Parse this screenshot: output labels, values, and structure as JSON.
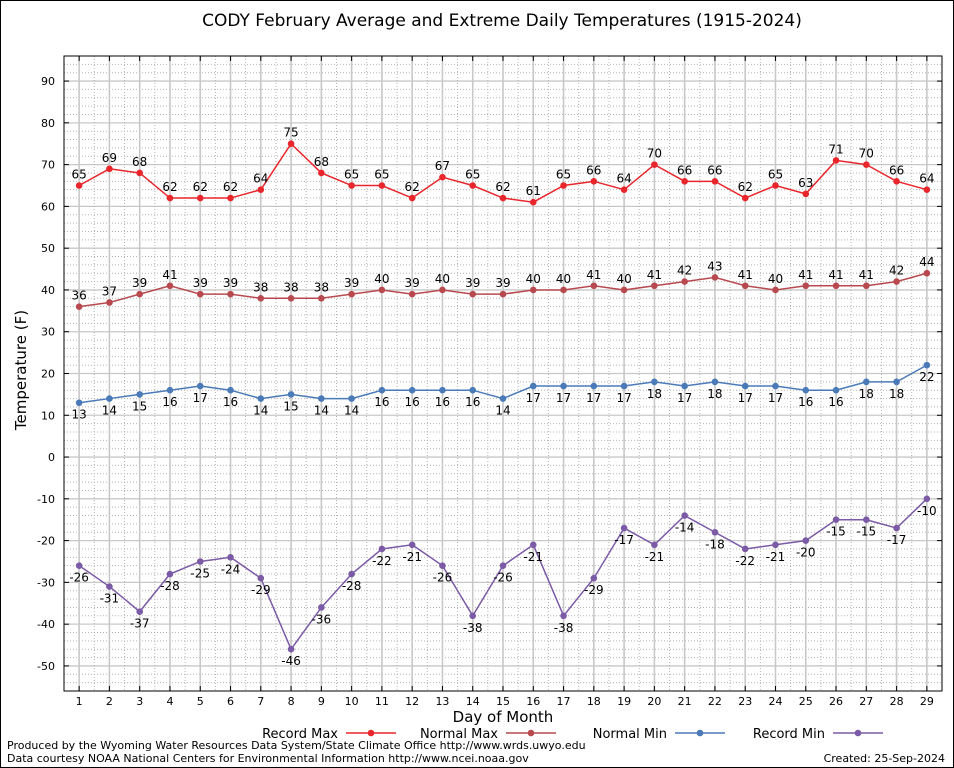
{
  "chart_data": {
    "type": "line",
    "title": "CODY February Average and Extreme Daily Temperatures (1915-2024)",
    "xlabel": "Day of Month",
    "ylabel": "Temperature (F)",
    "ylim": [
      -56,
      96
    ],
    "y_ticks": [
      -50,
      -40,
      -30,
      -20,
      -10,
      0,
      10,
      20,
      30,
      40,
      50,
      60,
      70,
      80,
      90
    ],
    "x": [
      1,
      2,
      3,
      4,
      5,
      6,
      7,
      8,
      9,
      10,
      11,
      12,
      13,
      14,
      15,
      16,
      17,
      18,
      19,
      20,
      21,
      22,
      23,
      24,
      25,
      26,
      27,
      28,
      29
    ],
    "grid": true,
    "legend_position": "bottom",
    "series": [
      {
        "name": "Record Max",
        "color": "#e8262b",
        "label_pos": "above",
        "values": [
          65,
          69,
          68,
          62,
          62,
          62,
          64,
          75,
          68,
          65,
          65,
          62,
          67,
          65,
          62,
          61,
          65,
          66,
          64,
          70,
          66,
          66,
          62,
          65,
          63,
          71,
          70,
          66,
          64
        ]
      },
      {
        "name": "Normal Max",
        "color": "#b84a4f",
        "label_pos": "above",
        "values": [
          36,
          37,
          39,
          41,
          39,
          39,
          38,
          38,
          38,
          39,
          40,
          39,
          40,
          39,
          39,
          40,
          40,
          41,
          40,
          41,
          42,
          43,
          41,
          40,
          41,
          41,
          41,
          42,
          44
        ]
      },
      {
        "name": "Normal Min",
        "color": "#4a7ab8",
        "label_pos": "below",
        "values": [
          13,
          14,
          15,
          16,
          17,
          16,
          14,
          15,
          14,
          14,
          16,
          16,
          16,
          16,
          14,
          17,
          17,
          17,
          17,
          18,
          17,
          18,
          17,
          17,
          16,
          16,
          18,
          18,
          22
        ]
      },
      {
        "name": "Record Min",
        "color": "#7b5aa6",
        "label_pos": "below",
        "values": [
          -26,
          -31,
          -37,
          -28,
          -25,
          -24,
          -29,
          -46,
          -36,
          -28,
          -22,
          -21,
          -26,
          -38,
          -26,
          -21,
          -38,
          -29,
          -17,
          -21,
          -14,
          -18,
          -22,
          -21,
          -20,
          -15,
          -15,
          -17,
          -10
        ]
      }
    ]
  },
  "footer": {
    "produced_by": "Produced by the Wyoming Water Resources Data System/State Climate Office http://www.wrds.uwyo.edu",
    "courtesy": "Data courtesy NOAA National Centers for Environmental Information http://www.ncei.noaa.gov",
    "created": "Created:  25-Sep-2024"
  }
}
